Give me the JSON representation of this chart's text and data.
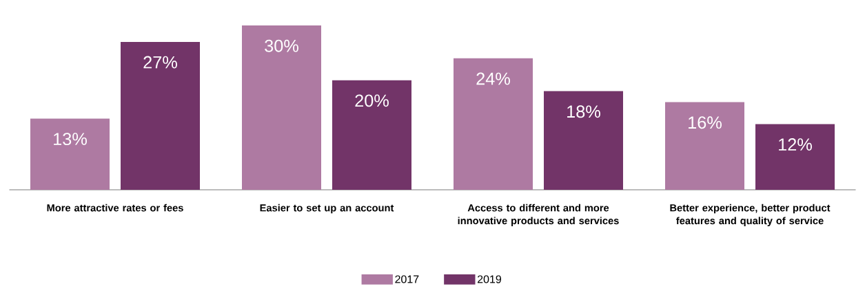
{
  "chart_data": {
    "type": "bar",
    "categories": [
      "More attractive rates or fees",
      "Easier to set up an account",
      "Access to different and more innovative products and services",
      "Better experience, better product features and quality of service"
    ],
    "series": [
      {
        "name": "2017",
        "color": "#ae7aa2",
        "values": [
          13,
          30,
          24,
          16
        ],
        "value_labels": [
          "13%",
          "30%",
          "24%",
          "16%"
        ]
      },
      {
        "name": "2019",
        "color": "#723468",
        "values": [
          27,
          20,
          18,
          12
        ],
        "value_labels": [
          "27%",
          "20%",
          "18%",
          "12%"
        ]
      }
    ],
    "legend": "bottom"
  }
}
